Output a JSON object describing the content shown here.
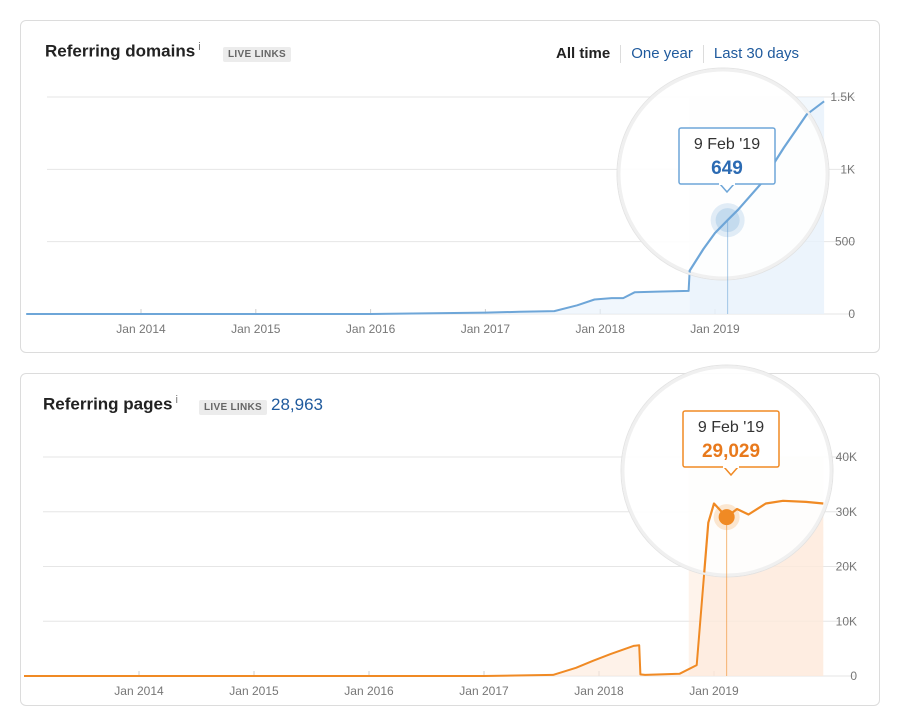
{
  "range_selector": {
    "all_time": "All time",
    "one_year": "One year",
    "last_30_days": "Last 30 days"
  },
  "domains": {
    "title": "Referring domains",
    "info": "i",
    "badge": "LIVE LINKS",
    "line_color": "#6ea6d8",
    "fill_color": "#e8f2fb",
    "tooltip": {
      "date": "9 Feb '19",
      "value": "649",
      "value_color": "#2c6bb3"
    }
  },
  "pages": {
    "title": "Referring pages",
    "info": "i",
    "badge": "LIVE LINKS",
    "count": "28,963",
    "line_color": "#f08a24",
    "fill_color": "#fdeadb",
    "tooltip": {
      "date": "9 Feb '19",
      "value": "29,029",
      "value_color": "#e8791c"
    }
  },
  "chart_data": [
    {
      "type": "line",
      "title": "Referring domains",
      "x_tick_labels": [
        "Jan 2014",
        "Jan 2015",
        "Jan 2016",
        "Jan 2017",
        "Jan 2018",
        "Jan 2019"
      ],
      "y_tick_labels": [
        "0",
        "500",
        "1K",
        "1.5K"
      ],
      "ylim": [
        0,
        1500
      ],
      "grid": true,
      "series": [
        {
          "x": [
            2013.0,
            2014.0,
            2015.0,
            2016.0,
            2017.0,
            2017.3,
            2017.6,
            2017.8,
            2017.95,
            2018.1,
            2018.2,
            2018.3,
            2018.5,
            2018.77,
            2018.78,
            2018.9,
            2019.0,
            2019.11,
            2019.2,
            2019.4,
            2019.6,
            2019.8,
            2019.95
          ],
          "y": [
            0,
            0,
            0,
            0,
            10,
            15,
            20,
            60,
            100,
            110,
            110,
            150,
            155,
            160,
            300,
            450,
            560,
            649,
            720,
            900,
            1150,
            1380,
            1470
          ]
        }
      ],
      "tooltip": {
        "date": "9 Feb '19",
        "value": 649
      }
    },
    {
      "type": "line",
      "title": "Referring pages",
      "x_tick_labels": [
        "Jan 2014",
        "Jan 2015",
        "Jan 2016",
        "Jan 2017",
        "Jan 2018",
        "Jan 2019"
      ],
      "y_tick_labels": [
        "0",
        "10K",
        "20K",
        "30K",
        "40K"
      ],
      "ylim": [
        0,
        40000
      ],
      "grid": true,
      "series": [
        {
          "x": [
            2013.0,
            2014.0,
            2015.0,
            2016.0,
            2017.0,
            2017.6,
            2017.8,
            2017.95,
            2018.1,
            2018.3,
            2018.35,
            2018.36,
            2018.4,
            2018.7,
            2018.85,
            2018.95,
            2019.0,
            2019.11,
            2019.2,
            2019.3,
            2019.45,
            2019.6,
            2019.8,
            2019.95
          ],
          "y": [
            0,
            0,
            0,
            0,
            0,
            200,
            1500,
            2800,
            4000,
            5500,
            5600,
            300,
            200,
            400,
            2000,
            28000,
            31500,
            29029,
            30500,
            29500,
            31500,
            32000,
            31800,
            31500
          ]
        }
      ],
      "tooltip": {
        "date": "9 Feb '19",
        "value": 29029
      }
    }
  ]
}
